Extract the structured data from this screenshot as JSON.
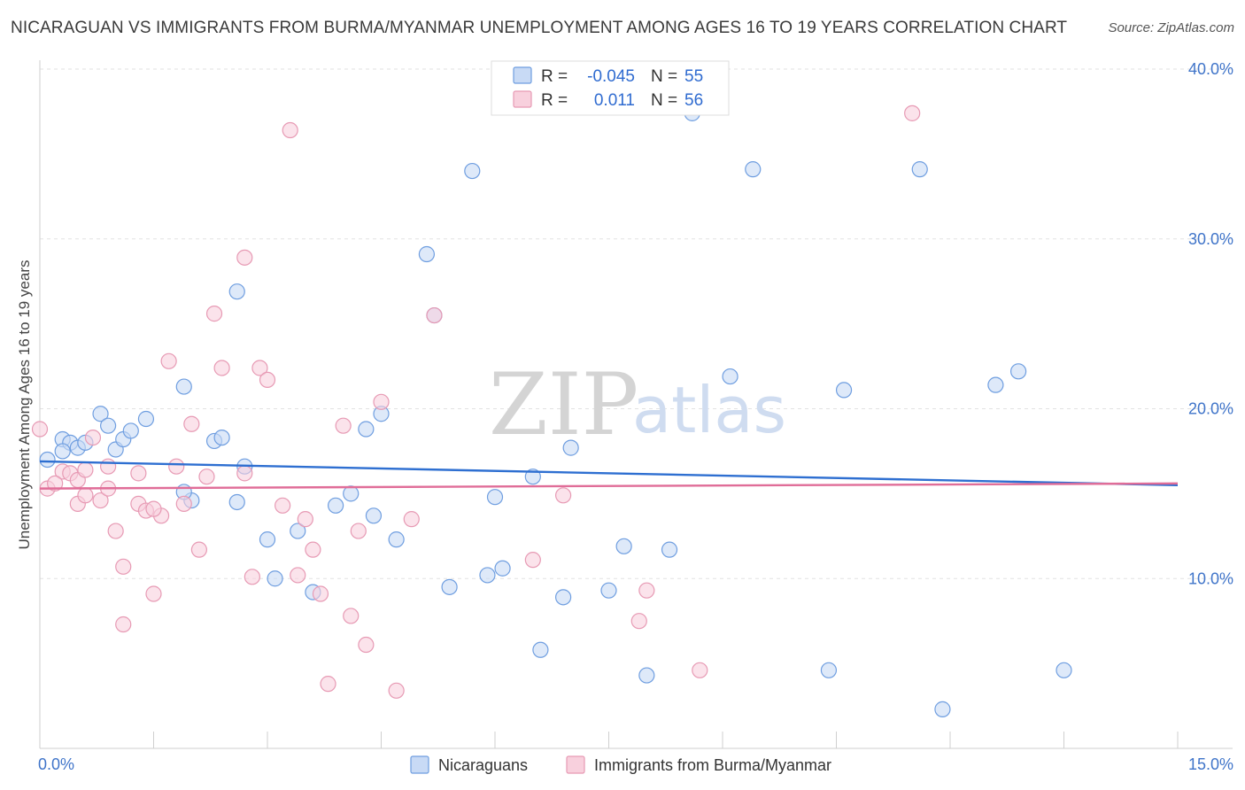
{
  "chart_data": {
    "type": "scatter",
    "title": "NICARAGUAN VS IMMIGRANTS FROM BURMA/MYANMAR UNEMPLOYMENT AMONG AGES 16 TO 19 YEARS CORRELATION CHART",
    "source": "Source: ZipAtlas.com",
    "ylabel": "Unemployment Among Ages 16 to 19 years",
    "xlabel": "",
    "xlim": [
      0,
      15
    ],
    "ylim": [
      0,
      40
    ],
    "x_tick_labels": {
      "min": "0.0%",
      "max": "15.0%"
    },
    "y_ticks": [
      {
        "value": 10,
        "label": "10.0%"
      },
      {
        "value": 20,
        "label": "20.0%"
      },
      {
        "value": 30,
        "label": "30.0%"
      },
      {
        "value": 40,
        "label": "40.0%"
      }
    ],
    "watermark": {
      "zip": "ZIP",
      "atlas": "atlas"
    },
    "stats_legend": [
      {
        "series": "Nicaraguans",
        "r_label": "R =",
        "r_value": "-0.045",
        "n_label": "N =",
        "n_value": "55"
      },
      {
        "series": "Immigrants from Burma/Myanmar",
        "r_label": "R =",
        "r_value": "0.011",
        "n_label": "N =",
        "n_value": "56"
      }
    ],
    "series": [
      {
        "name": "Nicaraguans",
        "color": "#6f9ee0",
        "fill": "#c8daf5",
        "trend_color": "#2e6fd1",
        "trend": [
          [
            0,
            16.9
          ],
          [
            15,
            15.5
          ]
        ],
        "points": [
          [
            0.1,
            17.0
          ],
          [
            0.3,
            18.2
          ],
          [
            0.4,
            18.0
          ],
          [
            0.5,
            17.7
          ],
          [
            0.6,
            18.0
          ],
          [
            0.8,
            19.7
          ],
          [
            0.9,
            19.0
          ],
          [
            1.0,
            17.6
          ],
          [
            1.1,
            18.2
          ],
          [
            1.2,
            18.7
          ],
          [
            1.4,
            19.4
          ],
          [
            1.9,
            21.3
          ],
          [
            2.0,
            14.6
          ],
          [
            2.6,
            26.9
          ],
          [
            2.3,
            18.1
          ],
          [
            2.4,
            18.3
          ],
          [
            2.7,
            16.6
          ],
          [
            3.4,
            12.8
          ],
          [
            3.0,
            12.3
          ],
          [
            3.1,
            10.0
          ],
          [
            3.9,
            14.3
          ],
          [
            3.6,
            9.2
          ],
          [
            4.4,
            13.7
          ],
          [
            4.7,
            12.3
          ],
          [
            4.5,
            19.7
          ],
          [
            4.3,
            18.8
          ],
          [
            4.1,
            15.0
          ],
          [
            5.1,
            29.1
          ],
          [
            5.2,
            25.5
          ],
          [
            5.4,
            9.5
          ],
          [
            5.7,
            34.0
          ],
          [
            5.9,
            10.2
          ],
          [
            6.1,
            10.6
          ],
          [
            6.0,
            14.8
          ],
          [
            6.5,
            16.0
          ],
          [
            6.6,
            5.8
          ],
          [
            6.9,
            8.9
          ],
          [
            7.0,
            17.7
          ],
          [
            7.5,
            9.3
          ],
          [
            7.7,
            11.9
          ],
          [
            8.0,
            4.3
          ],
          [
            8.3,
            11.7
          ],
          [
            8.6,
            37.4
          ],
          [
            9.1,
            21.9
          ],
          [
            9.4,
            34.1
          ],
          [
            10.4,
            4.6
          ],
          [
            10.6,
            21.1
          ],
          [
            11.6,
            34.1
          ],
          [
            11.9,
            2.3
          ],
          [
            12.6,
            21.4
          ],
          [
            12.9,
            22.2
          ],
          [
            13.5,
            4.6
          ],
          [
            1.9,
            15.1
          ],
          [
            2.6,
            14.5
          ],
          [
            0.3,
            17.5
          ]
        ]
      },
      {
        "name": "Immigrants from Burma/Myanmar",
        "color": "#e79ab4",
        "fill": "#f8d0dd",
        "trend_color": "#e06d98",
        "trend": [
          [
            0,
            15.3
          ],
          [
            15,
            15.6
          ]
        ],
        "points": [
          [
            0.0,
            18.8
          ],
          [
            0.1,
            15.3
          ],
          [
            0.3,
            16.3
          ],
          [
            0.4,
            16.2
          ],
          [
            0.5,
            14.4
          ],
          [
            0.6,
            14.9
          ],
          [
            0.7,
            18.3
          ],
          [
            0.8,
            14.6
          ],
          [
            0.9,
            16.6
          ],
          [
            1.0,
            12.8
          ],
          [
            1.1,
            10.7
          ],
          [
            1.1,
            7.3
          ],
          [
            1.3,
            16.2
          ],
          [
            1.3,
            14.4
          ],
          [
            1.4,
            14.0
          ],
          [
            1.5,
            9.1
          ],
          [
            1.6,
            13.7
          ],
          [
            1.7,
            22.8
          ],
          [
            1.8,
            16.6
          ],
          [
            1.9,
            14.4
          ],
          [
            2.0,
            19.1
          ],
          [
            2.1,
            11.7
          ],
          [
            2.2,
            16.0
          ],
          [
            2.3,
            25.6
          ],
          [
            2.4,
            22.4
          ],
          [
            2.7,
            28.9
          ],
          [
            2.8,
            10.1
          ],
          [
            2.9,
            22.4
          ],
          [
            3.0,
            21.7
          ],
          [
            3.3,
            36.4
          ],
          [
            3.4,
            10.2
          ],
          [
            3.5,
            13.5
          ],
          [
            3.6,
            11.7
          ],
          [
            3.7,
            9.1
          ],
          [
            3.8,
            3.8
          ],
          [
            4.0,
            19.0
          ],
          [
            4.1,
            7.8
          ],
          [
            4.2,
            12.8
          ],
          [
            4.3,
            6.1
          ],
          [
            4.5,
            20.4
          ],
          [
            4.7,
            3.4
          ],
          [
            4.9,
            13.5
          ],
          [
            5.2,
            25.5
          ],
          [
            6.5,
            11.1
          ],
          [
            6.9,
            14.9
          ],
          [
            7.9,
            7.5
          ],
          [
            8.0,
            9.3
          ],
          [
            8.7,
            4.6
          ],
          [
            11.5,
            37.4
          ],
          [
            0.2,
            15.6
          ],
          [
            0.5,
            15.8
          ],
          [
            0.9,
            15.3
          ],
          [
            1.5,
            14.1
          ],
          [
            2.7,
            16.2
          ],
          [
            3.2,
            14.3
          ],
          [
            0.6,
            16.4
          ]
        ]
      }
    ]
  }
}
